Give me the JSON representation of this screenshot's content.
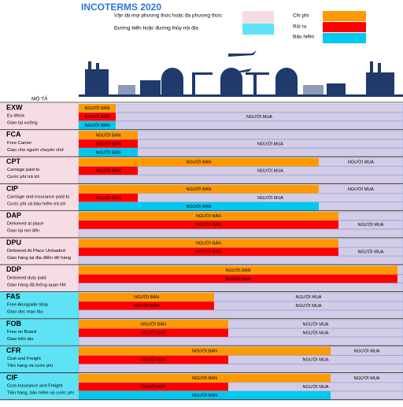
{
  "header": {
    "title": "INCOTERMS 2020",
    "legend_modes": [
      "Vận tải mọi phương thức hoặc đa phương thức",
      "Đường biển hoặc đường thủy nội địa"
    ],
    "legend_parts": [
      "Chi phí",
      "Rủi ro",
      "Bảo hiểm"
    ],
    "description": "MÔ TẢ"
  },
  "terms": [
    {
      "code": "EXW",
      "name": "Ex-Work",
      "name_vi": "Giao tại xưởng",
      "bars": [
        {
          "seller": "NGƯỜI BÁN"
        },
        {
          "seller": "NGƯỜI BÁN",
          "buyer": "NGƯỜI MUA"
        },
        {
          "seller": "NGƯỜI BÁN"
        }
      ]
    },
    {
      "code": "FCA",
      "name": "Free Carrier",
      "name_vi": "Giao cho người chuyên chở",
      "bars": [
        {
          "seller": "NGƯỜI BÁN"
        },
        {
          "seller": "NGƯỜI BÁN",
          "buyer": "NGƯỜI MUA"
        },
        {
          "seller": "NGƯỜI BÁN"
        }
      ]
    },
    {
      "code": "CPT",
      "name": "Carriage paid to",
      "name_vi": "Cước phí trả tới",
      "bars": [
        {
          "seller": "NGƯỜI BÁN",
          "buyer": "NGƯỜI MUA"
        },
        {
          "seller": "NGƯỜI BÁN",
          "buyer": "NGƯỜI MUA"
        },
        {}
      ]
    },
    {
      "code": "CIP",
      "name": "Carriage and insurance paid to",
      "name_vi": "Cước phí và bảo hiểm trả tới",
      "bars": [
        {
          "seller": "NGƯỜI BÁN",
          "buyer": "NGƯỜI MUA"
        },
        {
          "seller": "NGƯỜI BÁN",
          "buyer": "NGƯỜI MUA"
        },
        {
          "seller": "NGƯỜI BÁN"
        }
      ]
    },
    {
      "code": "DAP",
      "name": "Delivered at place",
      "name_vi": "Giao tại nơi đến",
      "bars": [
        {
          "seller": "NGƯỜI BÁN"
        },
        {
          "seller": "NGƯỜI BÁN",
          "buyer": "NGƯỜI MUA"
        },
        {}
      ]
    },
    {
      "code": "DPU",
      "name": "Delivered At Place Unloaded",
      "name_vi": "Giao hàng tại địa điểm dỡ hàng",
      "bars": [
        {
          "seller": "NGƯỜI BÁN"
        },
        {
          "seller": "NGƯỜI BÁN",
          "buyer": "NGƯỜI MUA"
        },
        {}
      ]
    },
    {
      "code": "DDP",
      "name": "Delivered duty paid",
      "name_vi": "Giao hàng đã thông quan NK",
      "bars": [
        {
          "seller": "NGƯỜI BÁN"
        },
        {
          "seller": "NGƯỜI BÁN"
        },
        {}
      ]
    },
    {
      "code": "FAS",
      "name": "Free Alongside Ship",
      "name_vi": "Giao dọc mạn tàu",
      "bars": [
        {
          "seller": "NGƯỜI BÁN",
          "buyer": "NGƯỜI MUA"
        },
        {
          "seller": "NGƯỜI BÁN",
          "buyer": "NGƯỜI MUA"
        },
        {}
      ]
    },
    {
      "code": "FOB",
      "name": "Free on Board",
      "name_vi": "Giao trên tàu",
      "bars": [
        {
          "seller": "NGƯỜI BÁN",
          "buyer": "NGƯỜI MUA"
        },
        {
          "seller": "NGƯỜI BÁN",
          "buyer": "NGƯỜI MUA"
        },
        {}
      ]
    },
    {
      "code": "CFR",
      "name": "Cost and Freight",
      "name_vi": "Tiền hàng và cước phí",
      "bars": [
        {
          "seller": "NGƯỜI BÁN",
          "buyer": "NGƯỜI MUA"
        },
        {
          "seller": "NGƯỜI BÁN",
          "buyer": "NGƯỜI MUA"
        },
        {}
      ]
    },
    {
      "code": "CIF",
      "name": "Cost-Insurance and Freight",
      "name_vi": "Tiền hàng, bảo hiểm và cước phí",
      "bars": [
        {
          "seller": "NGƯỜI BÁN",
          "buyer": "NGƯỜI MUA"
        },
        {
          "seller": "NGƯỜI BÁN",
          "buyer": "NGƯỜI MUA"
        },
        {
          "seller": "NGƯỜI BÁN"
        }
      ]
    }
  ]
}
